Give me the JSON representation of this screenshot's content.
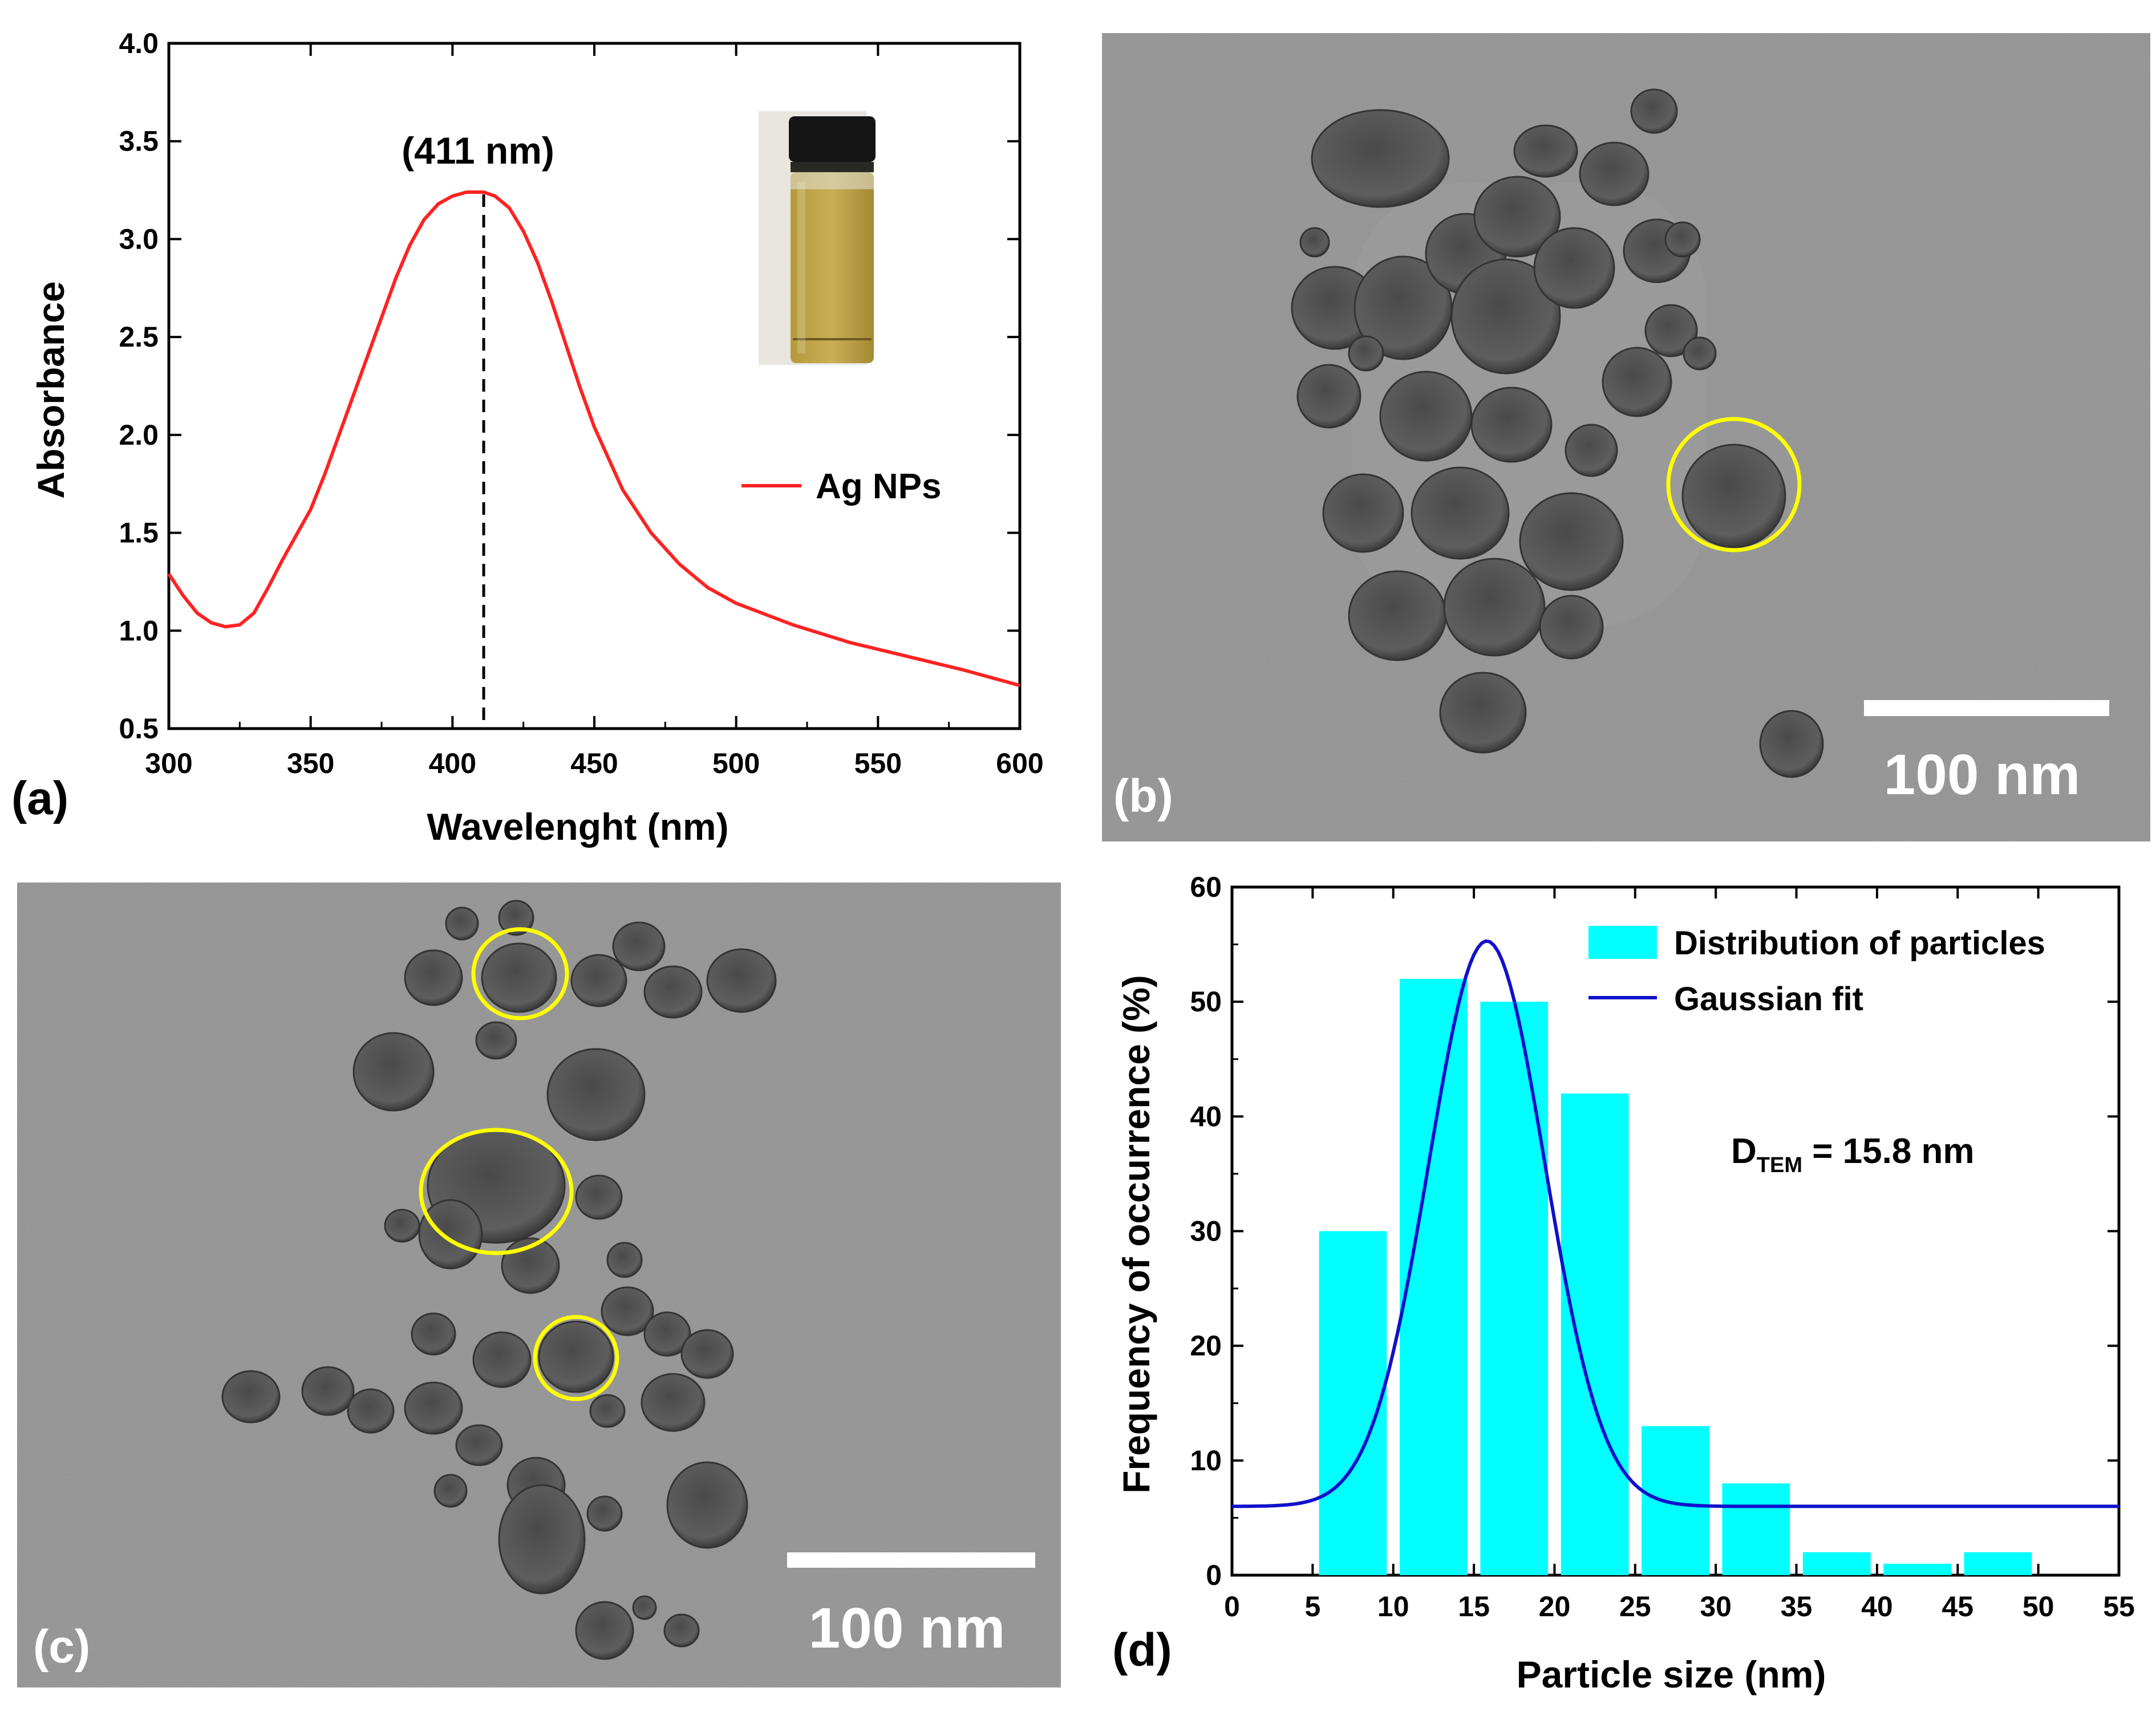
{
  "colors": {
    "curve": "#ff2222",
    "bars": "#00ffff",
    "gaussian": "#1010cc",
    "tem_background": "#8e8e8e",
    "circle": "#ffff00"
  },
  "chart_data": [
    {
      "type": "line",
      "panel_label": "(a)",
      "title": "",
      "xlabel": "Wavelenght (nm)",
      "ylabel": "Absorbance",
      "xlim": [
        300,
        600
      ],
      "ylim": [
        0.5,
        4.0
      ],
      "xticks": [
        "300",
        "350",
        "400",
        "450",
        "500",
        "550",
        "600"
      ],
      "yticks": [
        "0.5",
        "1.0",
        "1.5",
        "2.0",
        "2.5",
        "3.0",
        "3.5",
        "4.0"
      ],
      "legend": "Ag NPs",
      "legend_position": "right",
      "peak_annotation": "(411 nm)",
      "peak_x": 411,
      "series": [
        {
          "name": "Ag NPs",
          "x": [
            300,
            305,
            310,
            315,
            320,
            325,
            330,
            335,
            340,
            345,
            350,
            355,
            360,
            365,
            370,
            375,
            380,
            385,
            390,
            395,
            400,
            405,
            410,
            411,
            415,
            420,
            425,
            430,
            435,
            440,
            445,
            450,
            460,
            470,
            480,
            490,
            500,
            520,
            540,
            560,
            580,
            600
          ],
          "y": [
            1.29,
            1.18,
            1.09,
            1.04,
            1.02,
            1.03,
            1.09,
            1.22,
            1.36,
            1.49,
            1.62,
            1.8,
            2.0,
            2.2,
            2.4,
            2.6,
            2.8,
            2.97,
            3.1,
            3.18,
            3.22,
            3.24,
            3.24,
            3.24,
            3.22,
            3.16,
            3.04,
            2.88,
            2.68,
            2.46,
            2.24,
            2.04,
            1.72,
            1.5,
            1.34,
            1.22,
            1.14,
            1.03,
            0.94,
            0.87,
            0.8,
            0.72
          ]
        }
      ]
    },
    {
      "type": "bar",
      "panel_label": "(d)",
      "title": "",
      "xlabel": "Particle size (nm)",
      "ylabel": "Frequency of occurrence (%)",
      "xlim": [
        0,
        55
      ],
      "ylim": [
        0,
        60
      ],
      "xticks": [
        "0",
        "5",
        "10",
        "15",
        "20",
        "25",
        "30",
        "35",
        "40",
        "45",
        "50",
        "55"
      ],
      "yticks": [
        "0",
        "10",
        "20",
        "30",
        "40",
        "50",
        "60"
      ],
      "bin_centers": [
        7.5,
        12.5,
        17.5,
        22.5,
        27.5,
        32.5,
        37.5,
        42.5,
        47.5
      ],
      "values": [
        30,
        52,
        50,
        42,
        13,
        8,
        2,
        1,
        2
      ],
      "legend": [
        {
          "name": "Distribution of particles",
          "kind": "bar"
        },
        {
          "name": "Gaussian fit",
          "kind": "line"
        }
      ],
      "gaussian_fit": {
        "y0": 6,
        "xc": 15.8,
        "w": 7.2,
        "peak": 55.3
      },
      "annotation": {
        "prefix": "D",
        "subscript": "TEM",
        "suffix": " = 15.8 nm"
      }
    }
  ],
  "panels": {
    "b": {
      "label": "(b)",
      "scale_bar": "100 nm"
    },
    "c": {
      "label": "(c)",
      "scale_bar": "100 nm"
    }
  }
}
